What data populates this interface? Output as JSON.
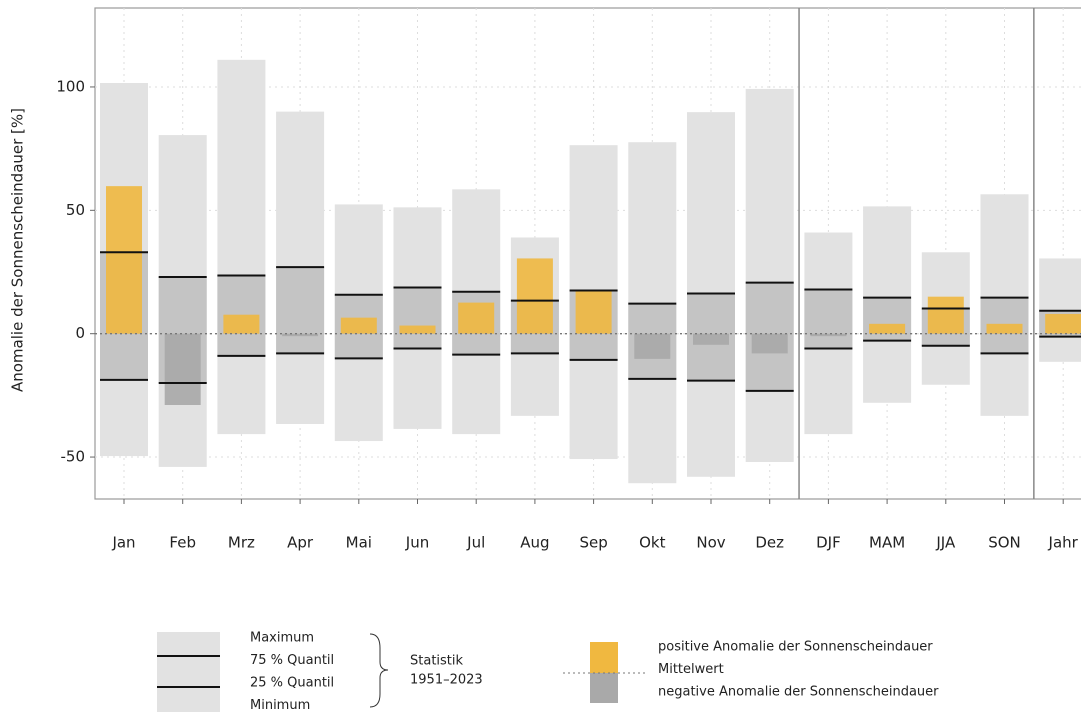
{
  "chart_data": {
    "type": "range",
    "y_label": "Anomalie der Sonnenscheindauer [%]",
    "categories": [
      "Jan",
      "Feb",
      "Mrz",
      "Apr",
      "Mai",
      "Jun",
      "Jul",
      "Aug",
      "Sep",
      "Okt",
      "Nov",
      "Dez",
      "DJF",
      "MAM",
      "JJA",
      "SON",
      "Jahr"
    ],
    "max": [
      101.6,
      80.5,
      111,
      90,
      52.4,
      51.2,
      58.5,
      39,
      76.4,
      77.6,
      89.8,
      99.2,
      41,
      51.6,
      33,
      56.5,
      30.5
    ],
    "q75": [
      33,
      23,
      23.6,
      27,
      15.8,
      18.7,
      17,
      13.4,
      17.5,
      12.2,
      16.3,
      20.7,
      17.9,
      14.6,
      10.2,
      14.6,
      9.3
    ],
    "q25": [
      -18.7,
      -20,
      -9,
      -8,
      -10,
      -6,
      -8.5,
      -8,
      -10.6,
      -18.3,
      -19,
      -23.2,
      -6,
      -2.8,
      -4.9,
      -8,
      -1.2
    ],
    "min": [
      -49.6,
      -54,
      -40.7,
      -36.6,
      -43.5,
      -38.6,
      -40.7,
      -33.3,
      -50.8,
      -60.6,
      -58,
      -52,
      -40.7,
      -28,
      -20.7,
      -33.3,
      -11.4
    ],
    "anomaly": [
      59.8,
      -28.9,
      7.7,
      -1,
      6.5,
      3.3,
      12.6,
      30.5,
      17.9,
      -10.2,
      -4.5,
      -8,
      -1,
      4,
      15,
      4,
      8
    ],
    "colors": {
      "range": "#e2e2e2",
      "quantile": "#c4c4c4",
      "positive": "#f0b840",
      "negative": "#a9a9a9"
    },
    "ylim": [
      -67,
      132
    ],
    "yticks": [
      -50,
      0,
      50,
      100
    ],
    "grid": true,
    "legend": {
      "statistics": [
        "Maximum",
        "75 % Quantil",
        "25 % Quantil",
        "Minimum"
      ],
      "group": [
        "Statistik",
        "1951–2023"
      ],
      "anomaly": [
        "positive Anomalie der Sonnenscheindauer",
        "Mittelwert",
        "negative Anomalie der Sonnenscheindauer"
      ]
    }
  }
}
